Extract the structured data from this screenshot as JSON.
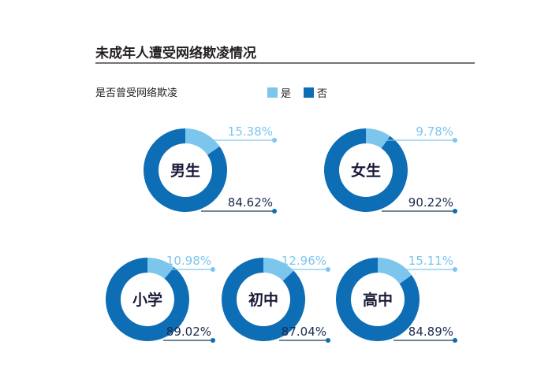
{
  "chart_data": {
    "type": "pie",
    "title": "未成年人遭受网络欺凌情况",
    "subtitle": "是否曾受网络欺凌",
    "legend": [
      {
        "label": "是",
        "color": "#7cc6ee"
      },
      {
        "label": "否",
        "color": "#0d6db5"
      }
    ],
    "groups": [
      {
        "name": "男生",
        "yes": 15.38,
        "no": 84.62,
        "yes_label": "15.38%",
        "no_label": "84.62%"
      },
      {
        "name": "女生",
        "yes": 9.78,
        "no": 90.22,
        "yes_label": "9.78%",
        "no_label": "90.22%"
      },
      {
        "name": "小学",
        "yes": 10.98,
        "no": 89.02,
        "yes_label": "10.98%",
        "no_label": "89.02%"
      },
      {
        "name": "初中",
        "yes": 12.96,
        "no": 87.04,
        "yes_label": "12.96%",
        "no_label": "87.04%"
      },
      {
        "name": "高中",
        "yes": 15.11,
        "no": 84.89,
        "yes_label": "15.11%",
        "no_label": "84.89%"
      }
    ]
  }
}
